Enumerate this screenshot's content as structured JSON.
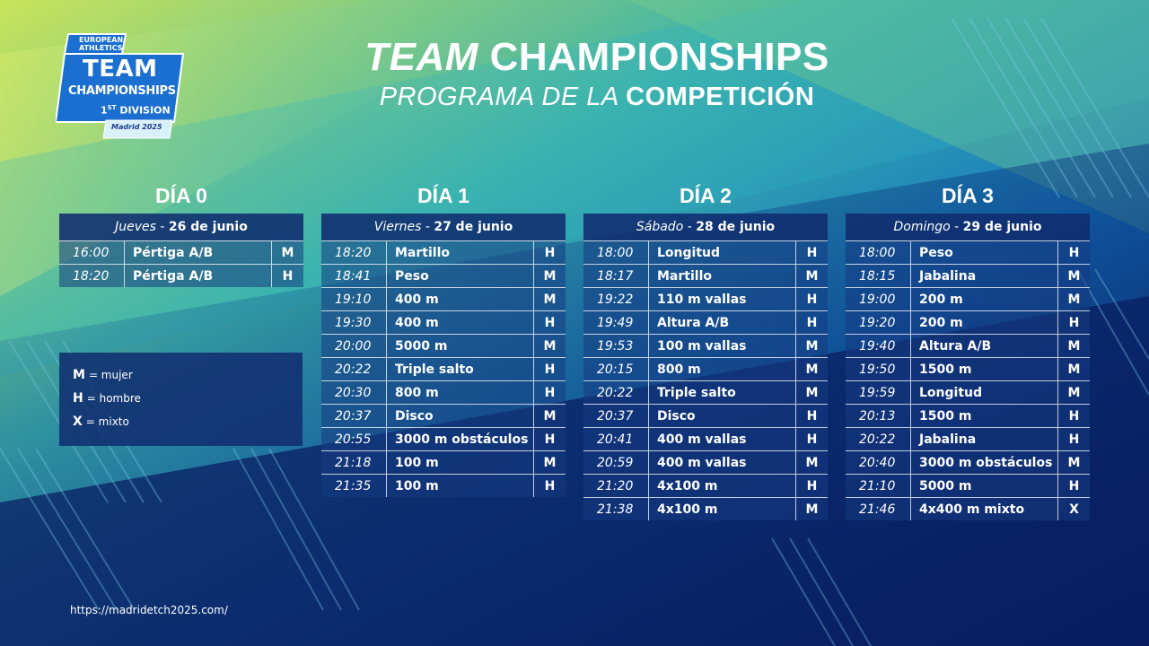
{
  "logo": {
    "brand_line1": "EUROPEAN",
    "brand_line2": "ATHLETICS",
    "team": "TEAM",
    "championships": "CHAMPIONSHIPS",
    "division_num": "1",
    "division_sup": "ST",
    "division_word": "DIVISION",
    "madrid": "Madrid 2025"
  },
  "header": {
    "title_part1": "TEAM",
    "title_part2": "CHAMPIONSHIPS",
    "subtitle_part1": "PROGRAMA DE LA",
    "subtitle_part2": "COMPETICIÓN"
  },
  "days": [
    {
      "title": "DÍA 0",
      "weekday": "Jueves",
      "date": "26 de junio",
      "rows": [
        {
          "time": "16:00",
          "event": "Pértiga A/B",
          "sex": "M"
        },
        {
          "time": "18:20",
          "event": "Pértiga A/B",
          "sex": "H"
        }
      ]
    },
    {
      "title": "DÍA 1",
      "weekday": "Viernes",
      "date": "27 de junio",
      "rows": [
        {
          "time": "18:20",
          "event": "Martillo",
          "sex": "H"
        },
        {
          "time": "18:41",
          "event": "Peso",
          "sex": "M"
        },
        {
          "time": "19:10",
          "event": "400 m",
          "sex": "M"
        },
        {
          "time": "19:30",
          "event": "400 m",
          "sex": "H"
        },
        {
          "time": "20:00",
          "event": "5000 m",
          "sex": "M"
        },
        {
          "time": "20:22",
          "event": "Triple salto",
          "sex": "H"
        },
        {
          "time": "20:30",
          "event": "800 m",
          "sex": "H"
        },
        {
          "time": "20:37",
          "event": "Disco",
          "sex": "M"
        },
        {
          "time": "20:55",
          "event": "3000 m obstáculos",
          "sex": "H"
        },
        {
          "time": "21:18",
          "event": "100 m",
          "sex": "M"
        },
        {
          "time": "21:35",
          "event": "100 m",
          "sex": "H"
        }
      ]
    },
    {
      "title": "DÍA 2",
      "weekday": "Sábado",
      "date": "28 de junio",
      "rows": [
        {
          "time": "18:00",
          "event": "Longitud",
          "sex": "H"
        },
        {
          "time": "18:17",
          "event": "Martillo",
          "sex": "M"
        },
        {
          "time": "19:22",
          "event": "110 m vallas",
          "sex": "H"
        },
        {
          "time": "19:49",
          "event": "Altura A/B",
          "sex": "H"
        },
        {
          "time": "19:53",
          "event": "100 m vallas",
          "sex": "M"
        },
        {
          "time": "20:15",
          "event": "800 m",
          "sex": "M"
        },
        {
          "time": "20:22",
          "event": "Triple salto",
          "sex": "M"
        },
        {
          "time": "20:37",
          "event": "Disco",
          "sex": "H"
        },
        {
          "time": "20:41",
          "event": "400 m vallas",
          "sex": "H"
        },
        {
          "time": "20:59",
          "event": "400 m vallas",
          "sex": "M"
        },
        {
          "time": "21:20",
          "event": "4x100 m",
          "sex": "H"
        },
        {
          "time": "21:38",
          "event": "4x100 m",
          "sex": "M"
        }
      ]
    },
    {
      "title": "DÍA 3",
      "weekday": "Domingo",
      "date": "29 de junio",
      "rows": [
        {
          "time": "18:00",
          "event": "Peso",
          "sex": "H"
        },
        {
          "time": "18:15",
          "event": "Jabalina",
          "sex": "M"
        },
        {
          "time": "19:00",
          "event": "200 m",
          "sex": "M"
        },
        {
          "time": "19:20",
          "event": "200 m",
          "sex": "H"
        },
        {
          "time": "19:40",
          "event": "Altura A/B",
          "sex": "M"
        },
        {
          "time": "19:50",
          "event": "1500 m",
          "sex": "M"
        },
        {
          "time": "19:59",
          "event": "Longitud",
          "sex": "M"
        },
        {
          "time": "20:13",
          "event": "1500 m",
          "sex": "H"
        },
        {
          "time": "20:22",
          "event": "Jabalina",
          "sex": "H"
        },
        {
          "time": "20:40",
          "event": "3000 m obstáculos",
          "sex": "M"
        },
        {
          "time": "21:10",
          "event": "5000 m",
          "sex": "H"
        },
        {
          "time": "21:46",
          "event": "4x400 m mixto",
          "sex": "X"
        }
      ]
    }
  ],
  "legend": [
    {
      "code": "M",
      "meaning": "= mujer"
    },
    {
      "code": "H",
      "meaning": "= hombre"
    },
    {
      "code": "X",
      "meaning": "= mixto"
    }
  ],
  "footer_url": "https://madridetch2025.com/",
  "colors": {
    "header_blue": "#102c6e",
    "logo_blue": "#1b6fd0",
    "accent_green": "#b7e04a"
  }
}
